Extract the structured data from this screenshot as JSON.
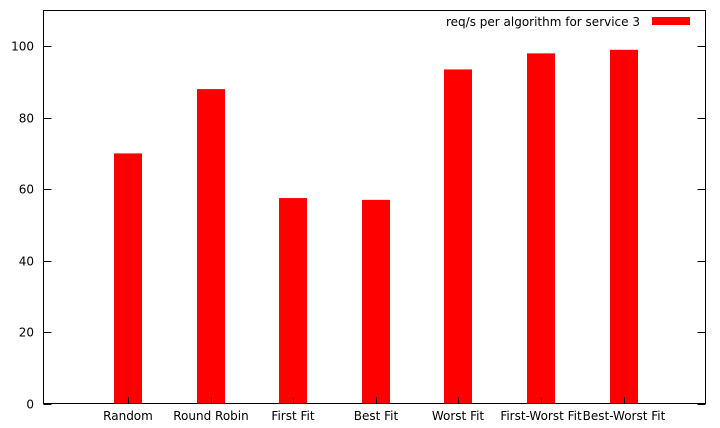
{
  "chart_data": {
    "type": "bar",
    "categories": [
      "Random",
      "Round Robin",
      "First Fit",
      "Best Fit",
      "Worst Fit",
      "First-Worst Fit",
      "Best-Worst Fit"
    ],
    "series": [
      {
        "name": "req/s per algorithm for service 3",
        "color": "#ff0000",
        "values": [
          70,
          88,
          57.5,
          57,
          93.5,
          98,
          99
        ]
      }
    ],
    "title": "",
    "xlabel": "",
    "ylabel": "",
    "ylim": [
      0,
      110
    ],
    "yticks": [
      0,
      20,
      40,
      60,
      80,
      100
    ],
    "grid": false,
    "legend_position": "top-right"
  }
}
